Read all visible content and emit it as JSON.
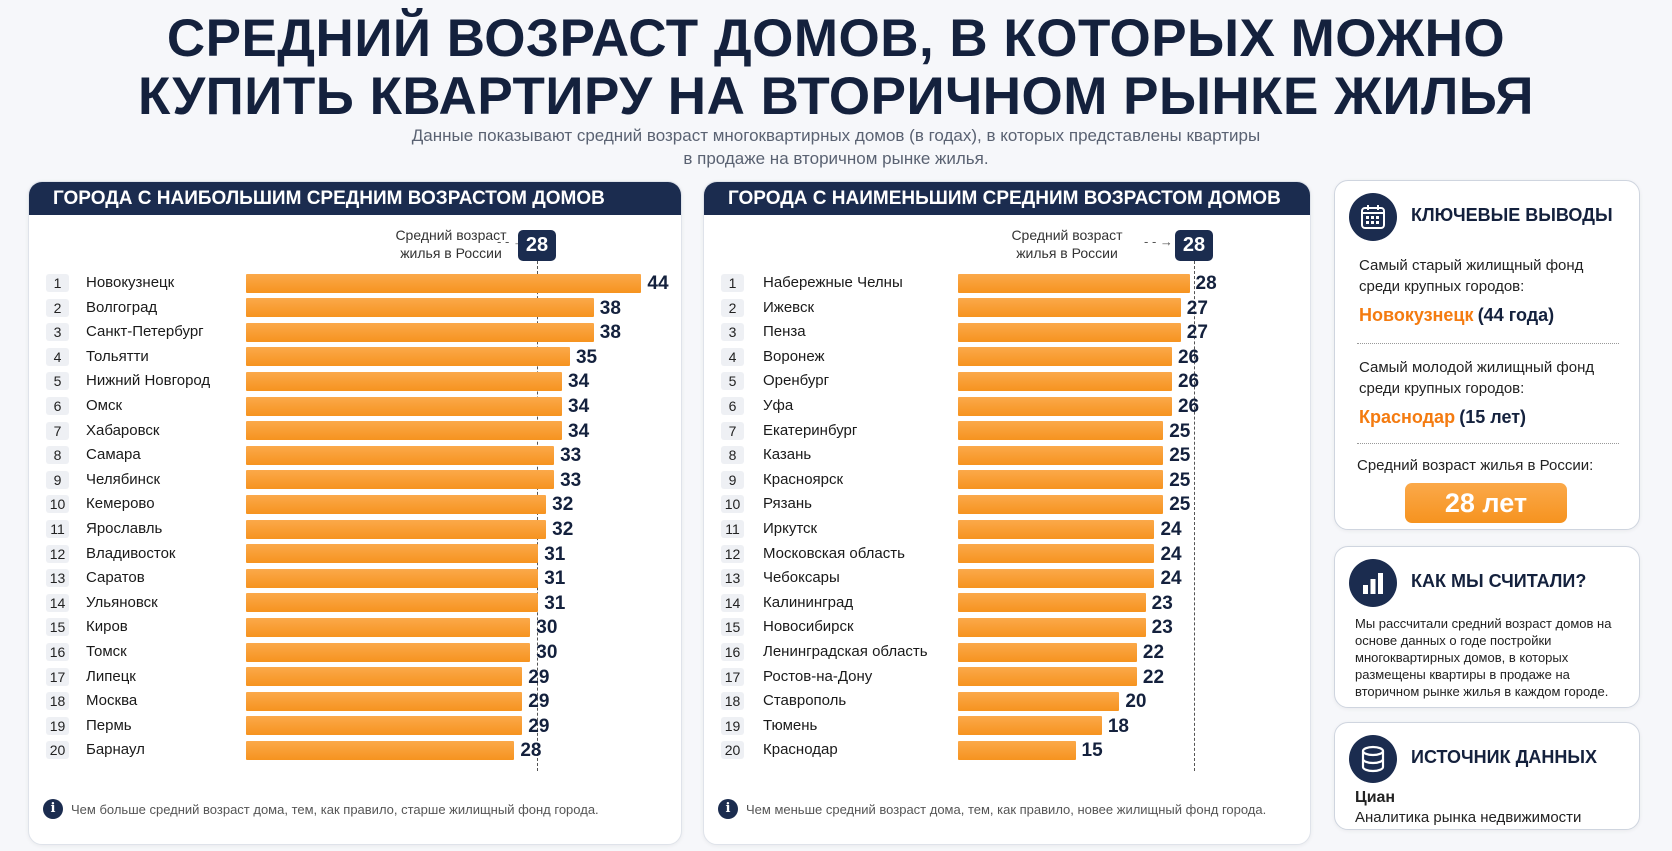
{
  "title_line1": "СРЕДНИЙ ВОЗРАСТ ДОМОВ, В КОТОРЫХ МОЖНО",
  "title_line2": "КУПИТЬ КВАРТИРУ НА ВТОРИЧНОМ РЫНКЕ ЖИЛЬЯ",
  "subtitle_line1": "Данные показывают средний возраст многоквартирных домов (в годах), в которых представлены квартиры",
  "subtitle_line2": "в продаже на вторичном рынке жилья.",
  "colors": {
    "navy": "#1b2c4f",
    "bar": "#f6931f",
    "highlight": "#f47b10"
  },
  "chart_data": [
    {
      "type": "bar",
      "orientation": "horizontal",
      "title": "ГОРОДА С НАИБОЛЬШИМ СРЕДНИМ ВОЗРАСТОМ ДОМОВ",
      "reference": {
        "label_line1": "Средний возраст",
        "label_line2": "жилья в России",
        "value": 28
      },
      "categories": [
        "Новокузнецк",
        "Волгоград",
        "Санкт-Петербург",
        "Тольятти",
        "Нижний Новгород",
        "Омск",
        "Хабаровск",
        "Самара",
        "Челябинск",
        "Кемерово",
        "Ярославль",
        "Владивосток",
        "Саратов",
        "Ульяновск",
        "Киров",
        "Томск",
        "Липецк",
        "Москва",
        "Пермь",
        "Барнаул"
      ],
      "values": [
        44,
        38,
        38,
        35,
        34,
        34,
        34,
        33,
        33,
        32,
        32,
        31,
        31,
        31,
        30,
        30,
        29,
        29,
        29,
        28
      ],
      "footnote": "Чем больше средний возраст дома, тем, как правило, старше жилищный фонд города."
    },
    {
      "type": "bar",
      "orientation": "horizontal",
      "title": "ГОРОДА С НАИМЕНЬШИМ СРЕДНИМ ВОЗРАСТОМ ДОМОВ",
      "reference": {
        "label_line1": "Средний возраст",
        "label_line2": "жилья в России",
        "value": 28
      },
      "categories": [
        "Набережные Челны",
        "Ижевск",
        "Пенза",
        "Воронеж",
        "Оренбург",
        "Уфа",
        "Екатеринбург",
        "Казань",
        "Красноярск",
        "Рязань",
        "Иркутск",
        "Московская область",
        "Чебоксары",
        "Калининград",
        "Новосибирск",
        "Ленинградская область",
        "Ростов-на-Дону",
        "Ставрополь",
        "Тюмень",
        "Краснодар"
      ],
      "values": [
        28,
        27,
        27,
        26,
        26,
        26,
        25,
        25,
        25,
        25,
        24,
        24,
        24,
        23,
        23,
        22,
        22,
        20,
        18,
        15
      ],
      "footnote": "Чем меньше средний возраст дома, тем, как правило, новее жилищный фонд города."
    }
  ],
  "sidebar": {
    "key": {
      "icon": "calendar-icon",
      "title": "КЛЮЧЕВЫЕ ВЫВОДЫ",
      "oldest_text_1": "Самый старый жилищный фонд",
      "oldest_text_2": "среди крупных городов:",
      "oldest_city": "Новокузнецк",
      "oldest_value": "(44 года)",
      "youngest_text_1": "Самый молодой жилищный фонд",
      "youngest_text_2": "среди крупных городов:",
      "youngest_city": "Краснодар",
      "youngest_value": "(15 лет)",
      "avg_label": "Средний возраст жилья в России:",
      "avg_value": "28 лет"
    },
    "method": {
      "icon": "bar-chart-icon",
      "title": "КАК МЫ СЧИТАЛИ?",
      "text": "Мы рассчитали средний возраст домов на основе данных о годе постройки многоквартирных домов, в которых размещены квартиры в продаже на вторичном рынке жилья в каждом городе."
    },
    "source": {
      "icon": "database-icon",
      "title": "ИСТОЧНИК ДАННЫХ",
      "name": "Циан",
      "desc": "Аналитика рынка недвижимости"
    }
  }
}
